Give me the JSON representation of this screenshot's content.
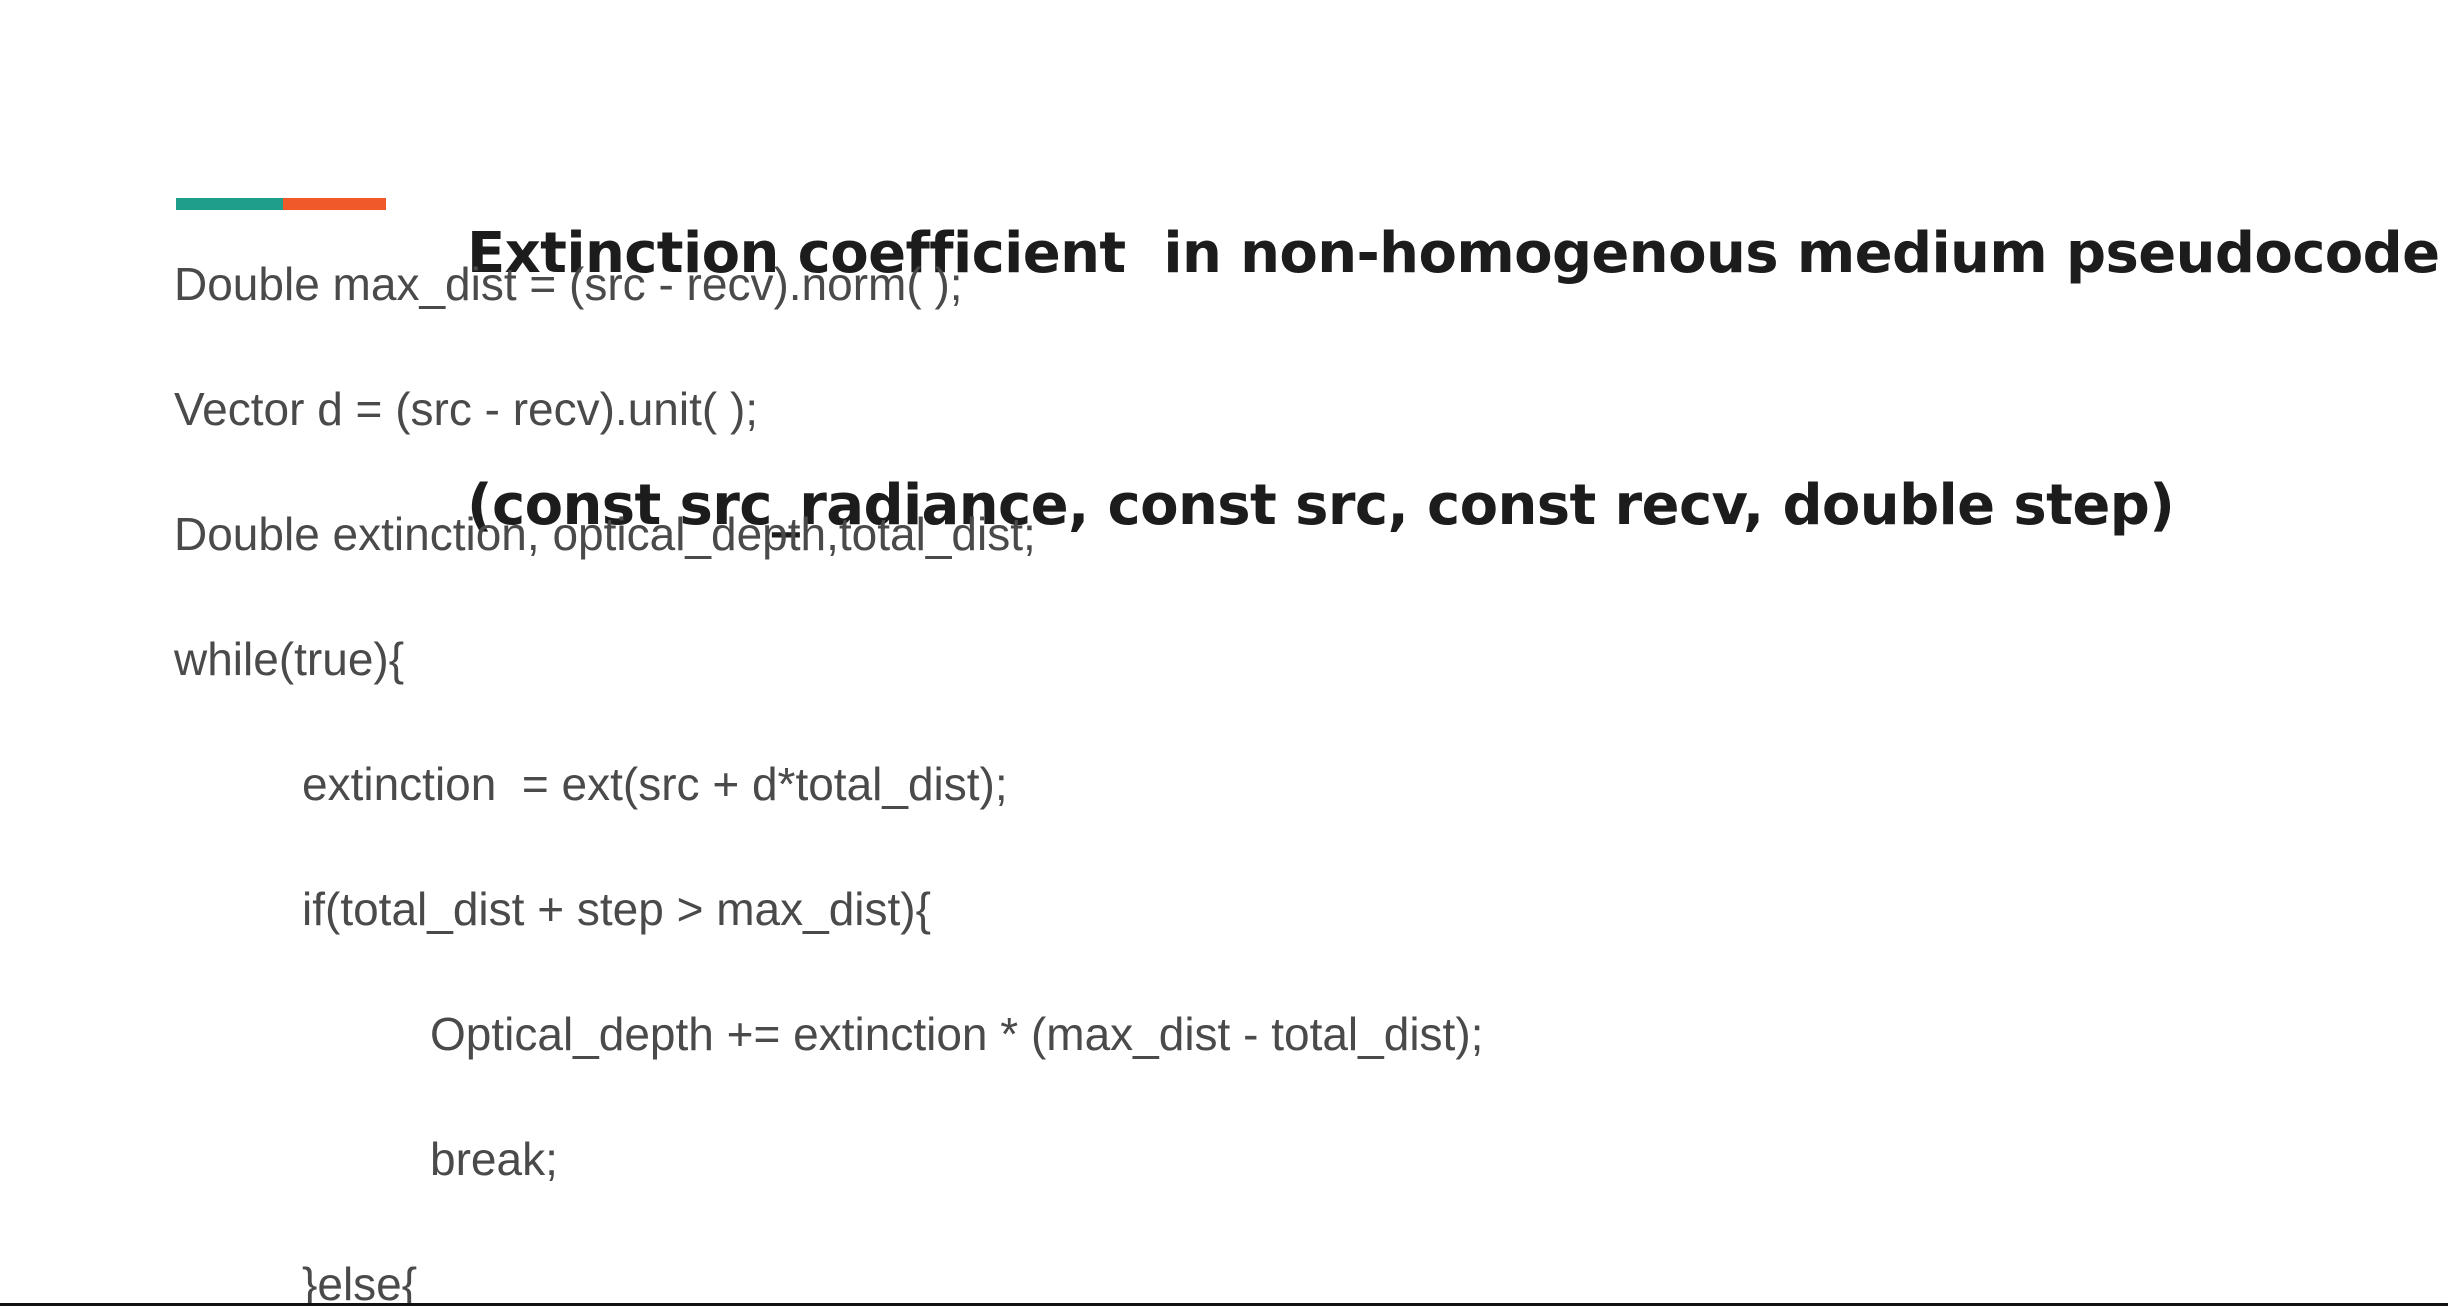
{
  "slide": {
    "title_lines": [
      "Extinction coefficient  in non-homogenous medium pseudocode",
      "(const src_radiance, const src, const recv, double step)"
    ],
    "accent_colors": {
      "teal": "#1e9e8b",
      "orange": "#f0592a"
    },
    "code_lines": [
      "Double max_dist = (src - recv).norm( );",
      "Vector d = (src - recv).unit( );",
      "Double extinction, optical_depth,total_dist;",
      "while(true){",
      "extinction  = ext(src + d*total_dist);",
      "if(total_dist + step > max_dist){",
      "Optical_depth += extinction * (max_dist - total_dist);",
      "break;",
      "}else{"
    ]
  }
}
